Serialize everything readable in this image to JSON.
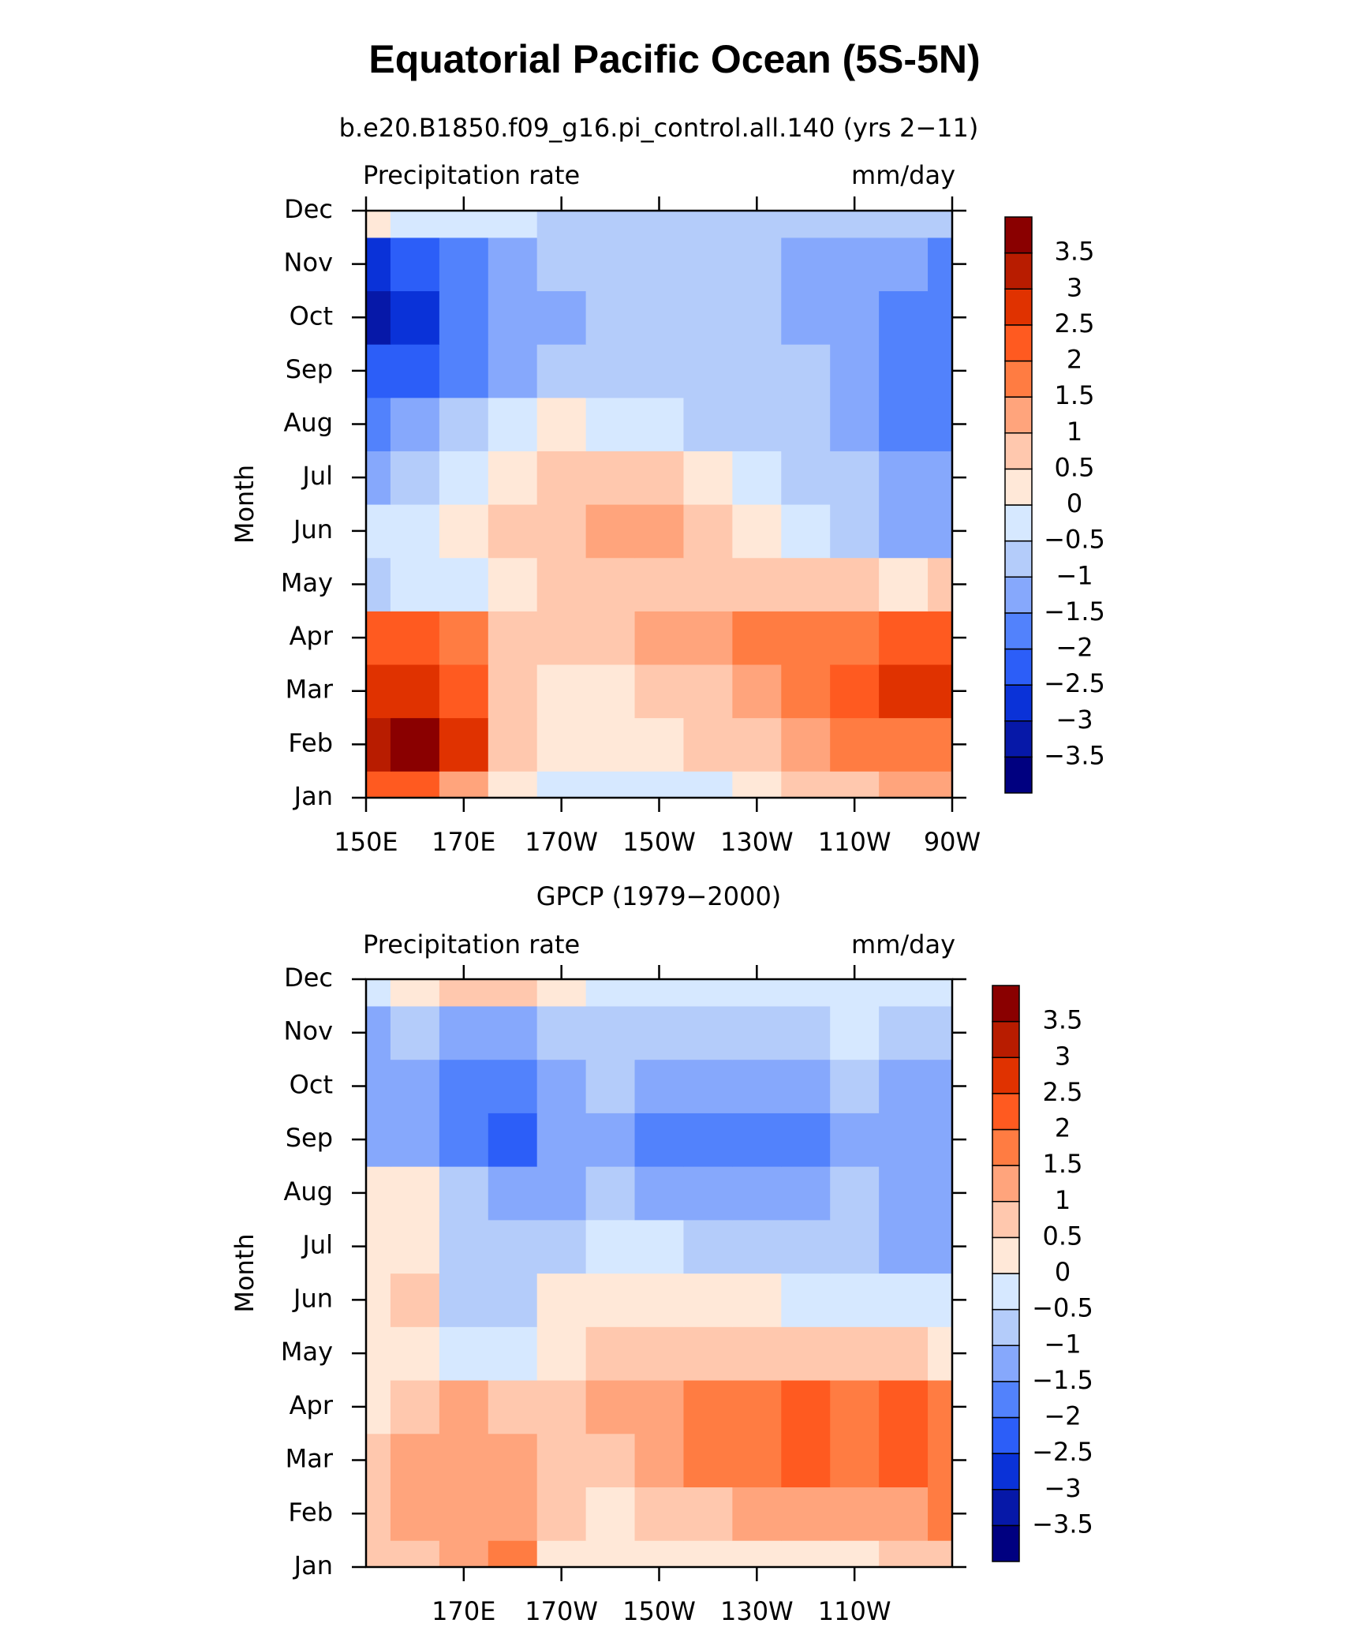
{
  "title": "Equatorial Pacific Ocean (5S-5N)",
  "chart_data": [
    {
      "type": "contour",
      "subtitle": "b.e20.B1850.f09_g16.pi_control.all.140 (yrs 2−11)",
      "left_label": "Precipitation rate",
      "right_label": "mm/day",
      "ylabel": "Month",
      "categories": [
        "Jan",
        "Feb",
        "Mar",
        "Apr",
        "May",
        "Jun",
        "Jul",
        "Aug",
        "Sep",
        "Oct",
        "Nov",
        "Dec"
      ],
      "x": [
        150,
        160,
        170,
        180,
        190,
        200,
        210,
        220,
        230,
        240,
        250,
        260,
        270
      ],
      "xlim": [
        150,
        270
      ],
      "xticks": [
        {
          "value": 150,
          "label": "150E"
        },
        {
          "value": 170,
          "label": "170E"
        },
        {
          "value": 190,
          "label": "170W"
        },
        {
          "value": 210,
          "label": "150W"
        },
        {
          "value": 230,
          "label": "130W"
        },
        {
          "value": 250,
          "label": "110W"
        },
        {
          "value": 270,
          "label": "90W"
        }
      ],
      "z": [
        [
          2.5,
          2.2,
          1.2,
          0.2,
          -0.2,
          -0.2,
          -0.2,
          -0.1,
          0.2,
          0.6,
          1.0,
          1.2,
          1.2
        ],
        [
          3.2,
          3.6,
          2.6,
          0.8,
          0.3,
          0.3,
          0.4,
          0.6,
          0.9,
          1.3,
          1.7,
          2.0,
          2.0
        ],
        [
          3.0,
          2.7,
          2.2,
          0.9,
          0.4,
          0.5,
          0.7,
          1.0,
          1.4,
          1.8,
          2.1,
          2.7,
          3.0
        ],
        [
          2.3,
          2.2,
          1.6,
          0.9,
          0.8,
          0.9,
          1.1,
          1.3,
          1.6,
          1.9,
          2.0,
          2.2,
          2.3
        ],
        [
          -0.7,
          -0.4,
          -0.2,
          0.2,
          0.6,
          0.6,
          0.6,
          0.7,
          0.7,
          0.7,
          0.6,
          0.5,
          0.6
        ],
        [
          -0.3,
          -0.2,
          0.3,
          0.7,
          1.0,
          1.4,
          1.2,
          0.8,
          0.3,
          -0.4,
          -0.7,
          -1.1,
          -1.1
        ],
        [
          -1.2,
          -0.7,
          -0.3,
          0.2,
          0.8,
          0.8,
          0.8,
          0.5,
          -0.2,
          -0.7,
          -0.9,
          -1.1,
          -1.2
        ],
        [
          -1.6,
          -1.3,
          -0.8,
          -0.3,
          0.1,
          -0.2,
          -0.3,
          -0.5,
          -0.7,
          -0.9,
          -1.0,
          -1.5,
          -1.6
        ],
        [
          -2.4,
          -2.0,
          -1.6,
          -1.2,
          -0.9,
          -0.8,
          -0.6,
          -0.7,
          -0.8,
          -0.9,
          -1.0,
          -1.5,
          -1.6
        ],
        [
          -3.2,
          -2.6,
          -1.7,
          -1.3,
          -1.0,
          -0.9,
          -0.9,
          -0.9,
          -0.9,
          -1.0,
          -1.1,
          -1.5,
          -1.6
        ],
        [
          -2.6,
          -2.2,
          -1.6,
          -1.2,
          -0.9,
          -0.9,
          -0.9,
          -0.9,
          -0.9,
          -1.0,
          -1.1,
          -1.4,
          -1.5
        ],
        [
          0.2,
          -0.2,
          -0.4,
          -0.4,
          -0.6,
          -0.8,
          -0.9,
          -0.8,
          -0.6,
          -0.6,
          -0.7,
          -0.8,
          -0.7
        ]
      ],
      "levels": [
        {
          "value": -3.5,
          "label": "−3.5"
        },
        {
          "value": -3,
          "label": "−3"
        },
        {
          "value": -2.5,
          "label": "−2.5"
        },
        {
          "value": -2,
          "label": "−2"
        },
        {
          "value": -1.5,
          "label": "−1.5"
        },
        {
          "value": -1,
          "label": "−1"
        },
        {
          "value": -0.5,
          "label": "−0.5"
        },
        0,
        0.5,
        1,
        1.5,
        2,
        2.5,
        3,
        3.5
      ],
      "colors": [
        "#000080",
        "#0618a8",
        "#0a32d8",
        "#2c5ef8",
        "#5282fc",
        "#86a8fc",
        "#b4ccfa",
        "#d6e8ff",
        "#ffe8d8",
        "#ffc8ae",
        "#ffa47c",
        "#ff7c42",
        "#ff5a20",
        "#e03200",
        "#b81c00",
        "#8a0000"
      ]
    },
    {
      "type": "contour",
      "subtitle": "GPCP (1979−2000)",
      "left_label": "Precipitation rate",
      "right_label": "mm/day",
      "ylabel": "Month",
      "categories": [
        "Jan",
        "Feb",
        "Mar",
        "Apr",
        "May",
        "Jun",
        "Jul",
        "Aug",
        "Sep",
        "Oct",
        "Nov",
        "Dec"
      ],
      "x": [
        150,
        160,
        170,
        180,
        190,
        200,
        210,
        220,
        230,
        240,
        250,
        260,
        270
      ],
      "xlim": [
        150,
        270
      ],
      "xticks": [
        {
          "value": 170,
          "label": "170E"
        },
        {
          "value": 190,
          "label": "170W"
        },
        {
          "value": 210,
          "label": "150W"
        },
        {
          "value": 230,
          "label": "130W"
        },
        {
          "value": 250,
          "label": "110W"
        }
      ],
      "z": [
        [
          0.6,
          0.9,
          1.3,
          1.6,
          0.3,
          0.2,
          0.2,
          0.2,
          0.2,
          0.3,
          0.5,
          0.7,
          1.0
        ],
        [
          0.8,
          1.4,
          1.3,
          1.2,
          0.6,
          0.5,
          0.7,
          0.9,
          1.1,
          1.3,
          1.4,
          1.5,
          1.6
        ],
        [
          0.7,
          1.2,
          1.3,
          1.1,
          0.6,
          0.8,
          1.2,
          1.6,
          1.8,
          2.1,
          1.8,
          2.2,
          1.9
        ],
        [
          0.3,
          0.8,
          1.2,
          0.9,
          0.8,
          1.1,
          1.4,
          1.8,
          1.9,
          2.1,
          1.9,
          2.2,
          1.9
        ],
        [
          0.3,
          0.5,
          -0.3,
          -0.2,
          0.3,
          0.6,
          0.8,
          0.8,
          0.9,
          0.8,
          0.7,
          0.6,
          0.5
        ],
        [
          0.4,
          0.6,
          -0.6,
          -0.6,
          0.2,
          0.5,
          0.4,
          0.3,
          0.1,
          -0.1,
          -0.2,
          -0.3,
          -0.2
        ],
        [
          0.3,
          0.5,
          -0.6,
          -0.7,
          -0.6,
          -0.2,
          -0.4,
          -0.6,
          -0.7,
          -0.8,
          -0.8,
          -1.1,
          -1.3
        ],
        [
          0.2,
          0.2,
          -0.7,
          -1.1,
          -1.1,
          -0.9,
          -1.1,
          -1.2,
          -1.2,
          -1.1,
          -0.9,
          -1.2,
          -1.3
        ],
        [
          -1.2,
          -1.4,
          -1.9,
          -2.1,
          -1.4,
          -1.2,
          -1.6,
          -1.7,
          -1.7,
          -1.6,
          -1.2,
          -1.3,
          -1.4
        ],
        [
          -1.1,
          -1.2,
          -1.6,
          -1.9,
          -1.3,
          -0.9,
          -1.2,
          -1.4,
          -1.4,
          -1.2,
          -0.9,
          -1.2,
          -1.4
        ],
        [
          -1.1,
          -0.9,
          -1.0,
          -1.0,
          -0.9,
          -0.8,
          -0.7,
          -0.7,
          -0.6,
          -0.5,
          -0.4,
          -0.5,
          -0.6
        ],
        [
          -0.2,
          0.4,
          0.8,
          0.6,
          0.2,
          -0.2,
          -0.3,
          -0.3,
          -0.3,
          -0.2,
          -0.2,
          -0.2,
          -0.2
        ]
      ],
      "levels": [
        {
          "value": -3.5,
          "label": "−3.5"
        },
        {
          "value": -3,
          "label": "−3"
        },
        {
          "value": -2.5,
          "label": "−2.5"
        },
        {
          "value": -2,
          "label": "−2"
        },
        {
          "value": -1.5,
          "label": "−1.5"
        },
        {
          "value": -1,
          "label": "−1"
        },
        {
          "value": -0.5,
          "label": "−0.5"
        },
        0,
        0.5,
        1,
        1.5,
        2,
        2.5,
        3,
        3.5
      ],
      "colors": [
        "#000080",
        "#0618a8",
        "#0a32d8",
        "#2c5ef8",
        "#5282fc",
        "#86a8fc",
        "#b4ccfa",
        "#d6e8ff",
        "#ffe8d8",
        "#ffc8ae",
        "#ffa47c",
        "#ff7c42",
        "#ff5a20",
        "#e03200",
        "#b81c00",
        "#8a0000"
      ]
    }
  ]
}
